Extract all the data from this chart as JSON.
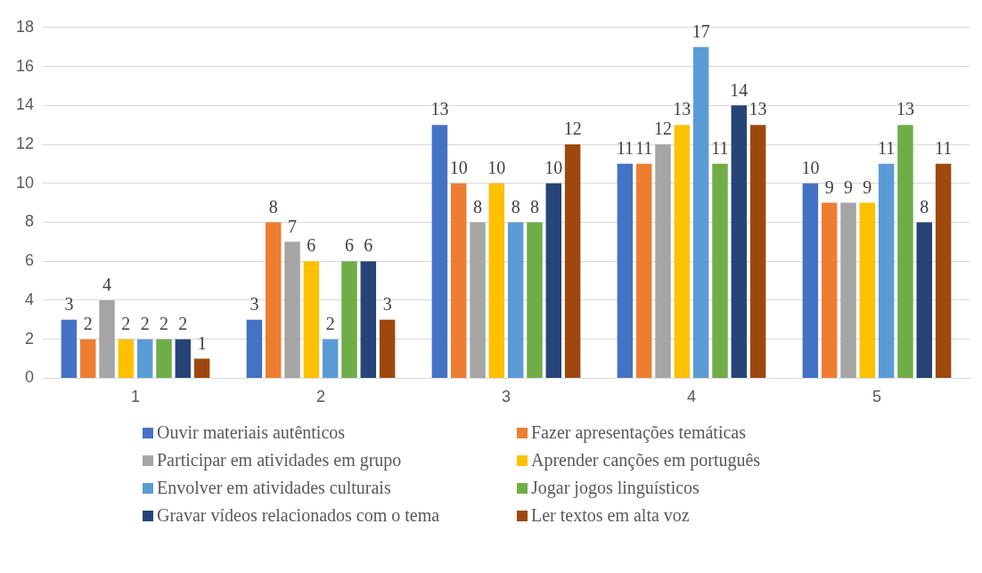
{
  "chart_data": {
    "type": "bar",
    "categories": [
      "1",
      "2",
      "3",
      "4",
      "5"
    ],
    "series": [
      {
        "name": "Ouvir materiais autênticos",
        "color": "#4472c4",
        "values": [
          3,
          3,
          13,
          11,
          10
        ]
      },
      {
        "name": "Fazer apresentações temáticas",
        "color": "#ed7d31",
        "values": [
          2,
          8,
          10,
          11,
          9
        ]
      },
      {
        "name": "Participar em atividades em grupo",
        "color": "#a5a5a5",
        "values": [
          4,
          7,
          8,
          12,
          9
        ]
      },
      {
        "name": "Aprender canções em português",
        "color": "#ffc000",
        "values": [
          2,
          6,
          10,
          13,
          9
        ]
      },
      {
        "name": "Envolver em atividades culturais",
        "color": "#5b9bd5",
        "values": [
          2,
          2,
          8,
          17,
          11
        ]
      },
      {
        "name": "Jogar jogos linguísticos",
        "color": "#70ad47",
        "values": [
          2,
          6,
          8,
          11,
          13
        ]
      },
      {
        "name": "Gravar vídeos relacionados com o tema",
        "color": "#264478",
        "values": [
          2,
          6,
          10,
          14,
          8
        ]
      },
      {
        "name": "Ler textos em alta voz",
        "color": "#9e480e",
        "values": [
          1,
          3,
          12,
          13,
          11
        ]
      }
    ],
    "ylim": [
      0,
      18
    ],
    "yticks": [
      0,
      2,
      4,
      6,
      8,
      10,
      12,
      14,
      16,
      18
    ],
    "grid": "y",
    "legend": "bottom",
    "data_labels": true
  }
}
